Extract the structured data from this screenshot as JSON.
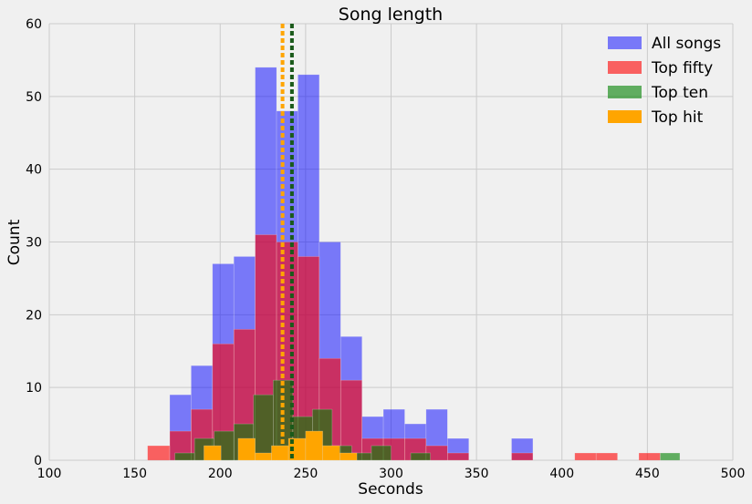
{
  "chart_data": {
    "type": "bar",
    "title": "Song length",
    "xlabel": "Seconds",
    "ylabel": "Count",
    "xlim": [
      100,
      500
    ],
    "ylim": [
      0,
      60
    ],
    "xticks": [
      100,
      150,
      200,
      250,
      300,
      350,
      400,
      450,
      500
    ],
    "yticks": [
      0,
      10,
      20,
      30,
      40,
      50,
      60
    ],
    "grid": true,
    "legend_position": "top-right",
    "series": [
      {
        "name": "All songs",
        "color": "#0000ff",
        "opacity": 0.5,
        "bins": [
          {
            "x0": 170.5,
            "x1": 183.0,
            "count": 9
          },
          {
            "x0": 183.0,
            "x1": 195.5,
            "count": 13
          },
          {
            "x0": 195.5,
            "x1": 208.0,
            "count": 27
          },
          {
            "x0": 208.0,
            "x1": 220.5,
            "count": 28
          },
          {
            "x0": 220.5,
            "x1": 233.0,
            "count": 54
          },
          {
            "x0": 233.0,
            "x1": 245.5,
            "count": 48
          },
          {
            "x0": 245.5,
            "x1": 258.0,
            "count": 53
          },
          {
            "x0": 258.0,
            "x1": 270.5,
            "count": 30
          },
          {
            "x0": 270.5,
            "x1": 283.0,
            "count": 17
          },
          {
            "x0": 283.0,
            "x1": 295.5,
            "count": 6
          },
          {
            "x0": 295.5,
            "x1": 308.0,
            "count": 7
          },
          {
            "x0": 308.0,
            "x1": 320.5,
            "count": 5
          },
          {
            "x0": 320.5,
            "x1": 333.0,
            "count": 7
          },
          {
            "x0": 333.0,
            "x1": 345.5,
            "count": 3
          },
          {
            "x0": 370.5,
            "x1": 383.0,
            "count": 3
          }
        ]
      },
      {
        "name": "Top fifty",
        "color": "#ff0000",
        "opacity": 0.6,
        "bins": [
          {
            "x0": 157.5,
            "x1": 170.5,
            "count": 2
          },
          {
            "x0": 170.5,
            "x1": 183.0,
            "count": 4
          },
          {
            "x0": 183.0,
            "x1": 195.5,
            "count": 7
          },
          {
            "x0": 195.5,
            "x1": 208.0,
            "count": 16
          },
          {
            "x0": 208.0,
            "x1": 220.5,
            "count": 18
          },
          {
            "x0": 220.5,
            "x1": 233.0,
            "count": 31
          },
          {
            "x0": 233.0,
            "x1": 245.5,
            "count": 30
          },
          {
            "x0": 245.5,
            "x1": 258.0,
            "count": 28
          },
          {
            "x0": 258.0,
            "x1": 270.5,
            "count": 14
          },
          {
            "x0": 270.5,
            "x1": 283.0,
            "count": 11
          },
          {
            "x0": 283.0,
            "x1": 295.5,
            "count": 3
          },
          {
            "x0": 295.5,
            "x1": 308.0,
            "count": 3
          },
          {
            "x0": 308.0,
            "x1": 320.5,
            "count": 3
          },
          {
            "x0": 320.5,
            "x1": 333.0,
            "count": 2
          },
          {
            "x0": 333.0,
            "x1": 345.5,
            "count": 1
          },
          {
            "x0": 370.5,
            "x1": 383.0,
            "count": 1
          },
          {
            "x0": 407.5,
            "x1": 420.0,
            "count": 1
          },
          {
            "x0": 420.0,
            "x1": 432.5,
            "count": 1
          },
          {
            "x0": 445.0,
            "x1": 457.5,
            "count": 1
          }
        ]
      },
      {
        "name": "Top ten",
        "color": "#008000",
        "opacity": 0.6,
        "bins": [
          {
            "x0": 173.5,
            "x1": 185.0,
            "count": 1
          },
          {
            "x0": 185.0,
            "x1": 196.5,
            "count": 3
          },
          {
            "x0": 196.5,
            "x1": 208.0,
            "count": 4
          },
          {
            "x0": 208.0,
            "x1": 219.5,
            "count": 5
          },
          {
            "x0": 219.5,
            "x1": 231.0,
            "count": 9
          },
          {
            "x0": 231.0,
            "x1": 242.5,
            "count": 11
          },
          {
            "x0": 242.5,
            "x1": 254.0,
            "count": 6
          },
          {
            "x0": 254.0,
            "x1": 265.5,
            "count": 7
          },
          {
            "x0": 265.5,
            "x1": 277.0,
            "count": 2
          },
          {
            "x0": 277.0,
            "x1": 288.5,
            "count": 1
          },
          {
            "x0": 288.5,
            "x1": 300.0,
            "count": 2
          },
          {
            "x0": 311.5,
            "x1": 323.0,
            "count": 1
          },
          {
            "x0": 457.5,
            "x1": 469.0,
            "count": 1
          }
        ]
      },
      {
        "name": "Top hit",
        "color": "#ffa500",
        "opacity": 1.0,
        "bins": [
          {
            "x0": 190.5,
            "x1": 200.5,
            "count": 2
          },
          {
            "x0": 210.5,
            "x1": 220.5,
            "count": 3
          },
          {
            "x0": 220.5,
            "x1": 230.0,
            "count": 1
          },
          {
            "x0": 230.0,
            "x1": 240.0,
            "count": 2
          },
          {
            "x0": 240.0,
            "x1": 250.0,
            "count": 3
          },
          {
            "x0": 250.0,
            "x1": 260.0,
            "count": 4
          },
          {
            "x0": 260.0,
            "x1": 270.0,
            "count": 2
          },
          {
            "x0": 270.0,
            "x1": 280.0,
            "count": 1
          }
        ]
      }
    ],
    "reference_lines": [
      {
        "series": "Top hit",
        "x": 236.5,
        "color": "#ffa500",
        "style": "dotted"
      },
      {
        "series": "Top ten",
        "x": 242.0,
        "color": "#1a5a1a",
        "style": "dotted"
      }
    ]
  }
}
